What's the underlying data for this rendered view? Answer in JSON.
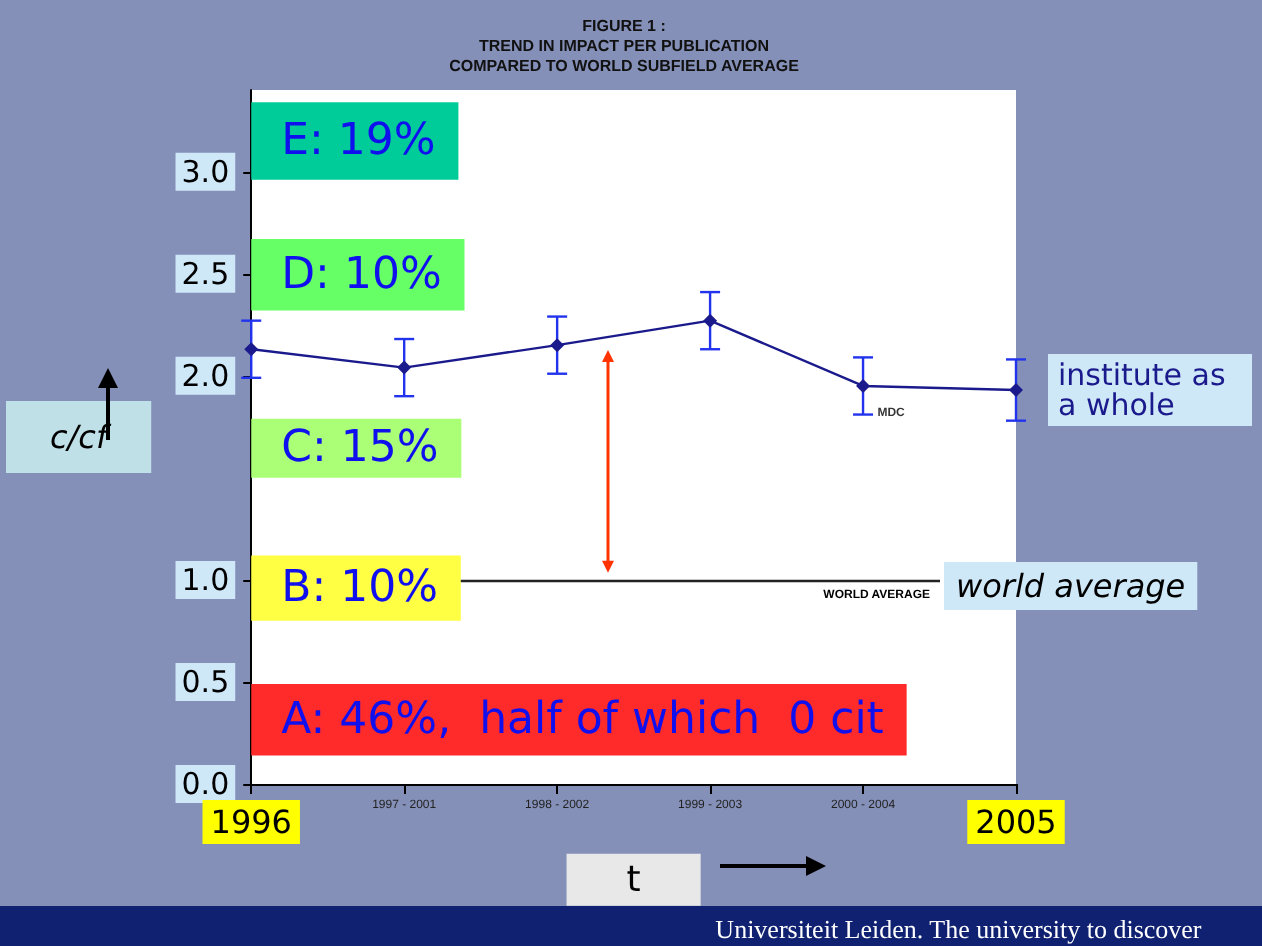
{
  "chart_data": {
    "type": "line",
    "title": "FIGURE 1 :\nTREND IN IMPACT PER PUBLICATION\nCOMPARED TO WORLD SUBFIELD AVERAGE",
    "xlabel": "t",
    "ylabel": "c/cf",
    "categories": [
      "1996",
      "1997 - 2001",
      "1998 - 2002",
      "1999 - 2003",
      "2000 - 2004",
      "2005"
    ],
    "series": [
      {
        "name": "institute as a whole",
        "color": "#1a1a8c",
        "values": [
          2.13,
          2.04,
          2.15,
          2.27,
          1.95,
          1.93
        ],
        "errors": [
          0.14,
          0.14,
          0.14,
          0.14,
          0.14,
          0.15
        ]
      }
    ],
    "ylim": [
      0,
      3.4
    ],
    "yticks": [
      {
        "value": 0,
        "label": "0.0"
      },
      0.5,
      {
        "value": 1,
        "label": "1.0"
      },
      {
        "value": 2,
        "label": "2.0"
      },
      2.5,
      {
        "value": 3,
        "label": "3.0"
      }
    ],
    "marker": "diamond",
    "legend": "right",
    "grid": false,
    "ref_lines": [
      {
        "axis": "y",
        "value": 1,
        "label": "WORLD AVERAGE",
        "color": "#222222"
      }
    ],
    "bands": [
      {
        "axis": "y",
        "from": 2.96,
        "to": 3.34,
        "label": "E: 19%",
        "color": "#00cc99"
      },
      {
        "axis": "y",
        "from": 2.32,
        "to": 2.67,
        "label": "D: 10%",
        "color": "#66ff66"
      },
      {
        "axis": "y",
        "from": 1.5,
        "to": 1.79,
        "label": "C: 15%",
        "color": "#aaff77"
      },
      {
        "axis": "y",
        "from": 0.8,
        "to": 1.12,
        "label": "B: 10%",
        "color": "#ffff44"
      },
      {
        "axis": "y",
        "from": 0.14,
        "to": 0.49,
        "label": "A: 46%,  half of which  0 cit",
        "color": "#ff2a2a"
      }
    ],
    "annotations": [
      {
        "text": "MDC",
        "x": "2000 - 2004",
        "y": 1.95
      },
      "world average",
      "Universiteit Leiden. The university to discover"
    ]
  }
}
